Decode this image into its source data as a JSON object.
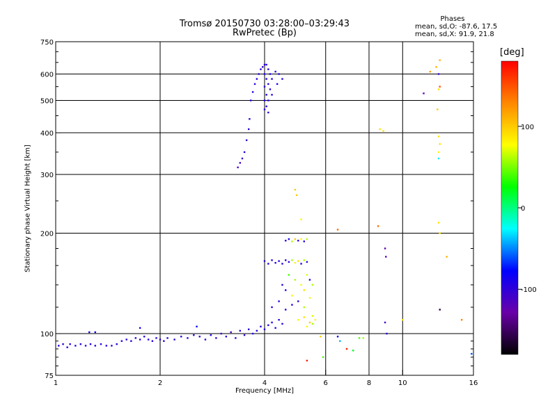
{
  "header": {
    "title_line1": "Tromsø 20150730 03:28:00–03:29:43",
    "title_line2": "RwPretec (Bp)"
  },
  "phases": {
    "title": "Phases",
    "o_line": "mean, sd,O: -87.6, 17.5",
    "x_line": "mean, sd,X:  91.9, 21.8"
  },
  "colorbar": {
    "unit": "[deg]",
    "ticks": [
      {
        "value": 100,
        "label": "100"
      },
      {
        "value": 0,
        "label": "0"
      },
      {
        "value": -100,
        "label": "-100"
      }
    ],
    "range": [
      -180,
      180
    ],
    "colors": [
      "#000000",
      "#6a00a8",
      "#0000ff",
      "#00ffff",
      "#00ff00",
      "#ffff00",
      "#ff8800",
      "#ff0000"
    ]
  },
  "chart_data": {
    "type": "scatter",
    "xlabel": "Frequency [MHz]",
    "ylabel": "Stationary phase Virtual Height [km]",
    "xscale": "log",
    "yscale": "log",
    "xlim": [
      1,
      16
    ],
    "ylim": [
      75,
      750
    ],
    "xticks": [
      1,
      2,
      4,
      6,
      8,
      10,
      16
    ],
    "xtick_labels": [
      "1",
      "2",
      "4",
      "6",
      "8",
      "10",
      "16"
    ],
    "yticks": [
      75,
      100,
      200,
      300,
      400,
      500,
      600,
      750
    ],
    "ytick_labels": [
      "75",
      "100",
      "200",
      "300",
      "400",
      "500",
      "600",
      "750"
    ],
    "grid": true,
    "series": [
      {
        "points": [
          [
            1.02,
            92,
            -95
          ],
          [
            1.05,
            93,
            -95
          ],
          [
            1.08,
            91,
            -98
          ],
          [
            1.1,
            93,
            -95
          ],
          [
            1.14,
            92,
            -96
          ],
          [
            1.18,
            93,
            -95
          ],
          [
            1.22,
            92,
            -97
          ],
          [
            1.26,
            93,
            -95
          ],
          [
            1.3,
            92,
            -95
          ],
          [
            1.35,
            93,
            -96
          ],
          [
            1.4,
            92,
            -95
          ],
          [
            1.45,
            92,
            -97
          ],
          [
            1.5,
            93,
            -95
          ],
          [
            1.55,
            95,
            -94
          ],
          [
            1.6,
            96,
            -96
          ],
          [
            1.65,
            95,
            -95
          ],
          [
            1.7,
            97,
            -95
          ],
          [
            1.75,
            96,
            -96
          ],
          [
            1.8,
            98,
            -95
          ],
          [
            1.85,
            96,
            -97
          ],
          [
            1.9,
            95,
            -95
          ],
          [
            1.95,
            97,
            -96
          ],
          [
            2.0,
            96,
            -95
          ],
          [
            2.05,
            95,
            -96
          ],
          [
            2.1,
            97,
            -95
          ],
          [
            2.2,
            96,
            -97
          ],
          [
            2.3,
            98,
            -95
          ],
          [
            2.4,
            97,
            -96
          ],
          [
            2.5,
            99,
            -95
          ],
          [
            2.6,
            98,
            -96
          ],
          [
            2.7,
            96,
            -98
          ],
          [
            2.8,
            99,
            -95
          ],
          [
            2.9,
            97,
            -105
          ],
          [
            3.0,
            100,
            -110
          ],
          [
            3.1,
            98,
            -95
          ],
          [
            3.2,
            101,
            -115
          ],
          [
            3.3,
            97,
            -96
          ],
          [
            3.4,
            102,
            -95
          ],
          [
            3.5,
            99,
            -100
          ],
          [
            3.6,
            103,
            -96
          ],
          [
            3.7,
            100,
            -95
          ],
          [
            3.8,
            102,
            -98
          ],
          [
            3.9,
            105,
            -95
          ],
          [
            4.0,
            103,
            -96
          ],
          [
            4.1,
            106,
            -95
          ],
          [
            4.2,
            108,
            -96
          ],
          [
            4.3,
            104,
            -95
          ],
          [
            4.4,
            110,
            -96
          ],
          [
            4.5,
            107,
            -95
          ],
          [
            1.25,
            101,
            -85
          ],
          [
            1.3,
            101,
            -85
          ],
          [
            1.75,
            104,
            -85
          ],
          [
            2.55,
            105,
            -80
          ]
        ]
      },
      {
        "points": [
          [
            3.35,
            315,
            -110
          ],
          [
            3.4,
            325,
            -110
          ],
          [
            3.45,
            335,
            -105
          ],
          [
            3.5,
            350,
            -100
          ],
          [
            3.55,
            380,
            -100
          ],
          [
            3.6,
            410,
            -100
          ],
          [
            3.62,
            440,
            -95
          ],
          [
            3.65,
            500,
            -95
          ],
          [
            3.7,
            530,
            -95
          ],
          [
            3.75,
            560,
            -95
          ],
          [
            3.8,
            580,
            -95
          ],
          [
            3.85,
            600,
            -100
          ],
          [
            3.9,
            620,
            -100
          ],
          [
            3.95,
            630,
            -100
          ],
          [
            4.0,
            640,
            -100
          ],
          [
            4.0,
            600,
            -95
          ],
          [
            4.0,
            550,
            -95
          ],
          [
            4.0,
            500,
            -95
          ],
          [
            4.0,
            470,
            -95
          ],
          [
            4.05,
            640,
            -100
          ],
          [
            4.05,
            580,
            -95
          ],
          [
            4.05,
            520,
            -95
          ],
          [
            4.05,
            480,
            -95
          ],
          [
            4.1,
            620,
            -100
          ],
          [
            4.1,
            560,
            -95
          ],
          [
            4.1,
            500,
            -95
          ],
          [
            4.1,
            460,
            -95
          ],
          [
            4.15,
            600,
            -95
          ],
          [
            4.15,
            540,
            -95
          ],
          [
            4.2,
            580,
            -95
          ],
          [
            4.2,
            520,
            -95
          ],
          [
            4.3,
            610,
            -95
          ],
          [
            4.35,
            560,
            -95
          ],
          [
            4.4,
            600,
            -95
          ],
          [
            4.5,
            580,
            -95
          ]
        ]
      },
      {
        "points": [
          [
            4.0,
            165,
            -100
          ],
          [
            4.1,
            162,
            -95
          ],
          [
            4.2,
            166,
            -98
          ],
          [
            4.3,
            163,
            -95
          ],
          [
            4.4,
            165,
            -100
          ],
          [
            4.5,
            162,
            -96
          ],
          [
            4.6,
            166,
            -95
          ],
          [
            4.7,
            164,
            -100
          ],
          [
            4.8,
            166,
            60
          ],
          [
            4.9,
            163,
            80
          ],
          [
            5.0,
            165,
            90
          ],
          [
            5.1,
            162,
            -95
          ],
          [
            5.2,
            166,
            60
          ],
          [
            5.3,
            164,
            -95
          ],
          [
            4.6,
            190,
            -95
          ],
          [
            4.7,
            192,
            -90
          ],
          [
            4.8,
            189,
            60
          ],
          [
            4.9,
            192,
            100
          ],
          [
            5.0,
            190,
            -100
          ],
          [
            5.1,
            192,
            80
          ],
          [
            5.2,
            189,
            -95
          ],
          [
            5.3,
            192,
            60
          ],
          [
            4.5,
            140,
            -95
          ],
          [
            4.6,
            135,
            -95
          ],
          [
            4.7,
            150,
            40
          ],
          [
            4.8,
            130,
            80
          ],
          [
            4.9,
            145,
            60
          ],
          [
            5.0,
            125,
            -100
          ],
          [
            5.1,
            140,
            80
          ],
          [
            5.2,
            135,
            90
          ],
          [
            5.3,
            150,
            70
          ],
          [
            5.4,
            145,
            -95
          ],
          [
            4.2,
            120,
            -95
          ],
          [
            4.4,
            125,
            -100
          ],
          [
            4.6,
            118,
            -95
          ],
          [
            4.8,
            122,
            -95
          ],
          [
            5.0,
            110,
            80
          ],
          [
            5.2,
            112,
            90
          ],
          [
            5.3,
            105,
            80
          ],
          [
            5.5,
            107,
            60
          ],
          [
            5.6,
            110,
            80
          ],
          [
            5.4,
            128,
            80
          ],
          [
            5.5,
            140,
            60
          ]
        ]
      },
      {
        "points": [
          [
            4.9,
            270,
            100
          ],
          [
            4.95,
            260,
            100
          ],
          [
            5.1,
            220,
            80
          ],
          [
            6.5,
            205,
            140
          ],
          [
            8.5,
            210,
            140
          ],
          [
            8.6,
            410,
            90
          ],
          [
            8.8,
            405,
            90
          ],
          [
            8.9,
            180,
            -120
          ],
          [
            8.95,
            170,
            -120
          ],
          [
            8.9,
            108,
            -110
          ],
          [
            9.0,
            100,
            -100
          ],
          [
            11.5,
            525,
            -120
          ],
          [
            12.0,
            610,
            120
          ],
          [
            12.5,
            630,
            110
          ],
          [
            12.8,
            660,
            110
          ],
          [
            12.7,
            600,
            -110
          ],
          [
            12.8,
            550,
            150
          ],
          [
            12.7,
            540,
            90
          ],
          [
            12.6,
            470,
            100
          ],
          [
            12.7,
            390,
            90
          ],
          [
            12.8,
            370,
            90
          ],
          [
            12.7,
            350,
            80
          ],
          [
            12.7,
            335,
            -30
          ],
          [
            12.7,
            215,
            90
          ],
          [
            12.8,
            200,
            90
          ],
          [
            12.8,
            118,
            -160
          ],
          [
            13.4,
            170,
            110
          ],
          [
            14.8,
            110,
            130
          ],
          [
            10.0,
            110,
            90
          ],
          [
            6.5,
            98,
            -80
          ],
          [
            6.6,
            95,
            -40
          ],
          [
            6.9,
            90,
            170
          ],
          [
            7.2,
            89,
            20
          ],
          [
            7.7,
            97,
            60
          ],
          [
            7.5,
            97,
            40
          ],
          [
            5.3,
            83,
            170
          ],
          [
            5.8,
            98,
            100
          ],
          [
            5.9,
            85,
            40
          ],
          [
            15.8,
            87,
            -60
          ],
          [
            5.4,
            108,
            100
          ],
          [
            5.5,
            113,
            70
          ],
          [
            5.2,
            120,
            60
          ]
        ]
      }
    ]
  }
}
